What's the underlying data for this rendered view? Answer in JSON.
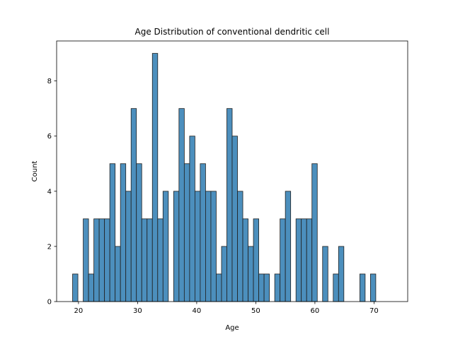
{
  "chart_data": {
    "type": "bar",
    "title": "Age Distribution of conventional dendritic cell",
    "xlabel": "Age",
    "ylabel": "Count",
    "xlim": [
      16.3,
      75.7
    ],
    "ylim": [
      0,
      9.45
    ],
    "xticks": [
      20,
      30,
      40,
      50,
      60,
      70
    ],
    "yticks": [
      0,
      2,
      4,
      6,
      8
    ],
    "bin_start": 19,
    "bin_width": 0.9,
    "counts": [
      1,
      0,
      3,
      1,
      3,
      3,
      3,
      5,
      2,
      5,
      4,
      7,
      5,
      3,
      3,
      9,
      3,
      4,
      0,
      4,
      7,
      5,
      6,
      4,
      5,
      4,
      4,
      1,
      2,
      7,
      6,
      4,
      3,
      2,
      3,
      1,
      1,
      0,
      1,
      3,
      4,
      0,
      3,
      3,
      3,
      5,
      0,
      2,
      0,
      1,
      2,
      0,
      0,
      0,
      1,
      0,
      1
    ],
    "bar_color": "#4c8fbd",
    "grid": false,
    "legend": "none"
  }
}
